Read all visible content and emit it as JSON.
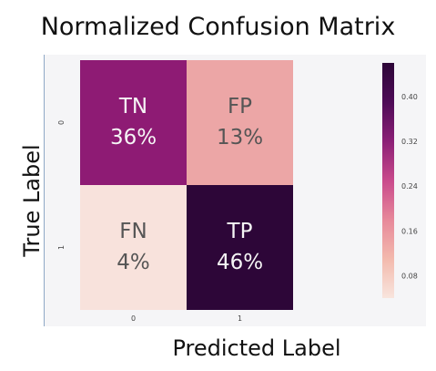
{
  "chart_data": {
    "type": "heatmap",
    "title": "Normalized Confusion Matrix",
    "xlabel": "Predicted Label",
    "ylabel": "True Label",
    "x_ticks": [
      "0",
      "1"
    ],
    "y_ticks": [
      "0",
      "1"
    ],
    "cells": [
      {
        "row": 0,
        "col": 0,
        "label": "TN",
        "value_text": "36%",
        "value": 0.36,
        "color": "#8e1b74"
      },
      {
        "row": 0,
        "col": 1,
        "label": "FP",
        "value_text": "13%",
        "value": 0.13,
        "color": "#eca6a6"
      },
      {
        "row": 1,
        "col": 0,
        "label": "FN",
        "value_text": "4%",
        "value": 0.04,
        "color": "#f8e2dc"
      },
      {
        "row": 1,
        "col": 1,
        "label": "TP",
        "value_text": "46%",
        "value": 0.46,
        "color": "#2d0638"
      }
    ],
    "colorbar": {
      "ticks": [
        "0.40",
        "0.32",
        "0.24",
        "0.16",
        "0.08"
      ],
      "tick_values": [
        0.4,
        0.32,
        0.24,
        0.16,
        0.08
      ],
      "range": [
        0.04,
        0.46
      ],
      "colors": [
        "#f8e4dd",
        "#f3b9ad",
        "#e7889a",
        "#c94a8c",
        "#8b1f76",
        "#4e0b57",
        "#2d0638"
      ]
    }
  }
}
